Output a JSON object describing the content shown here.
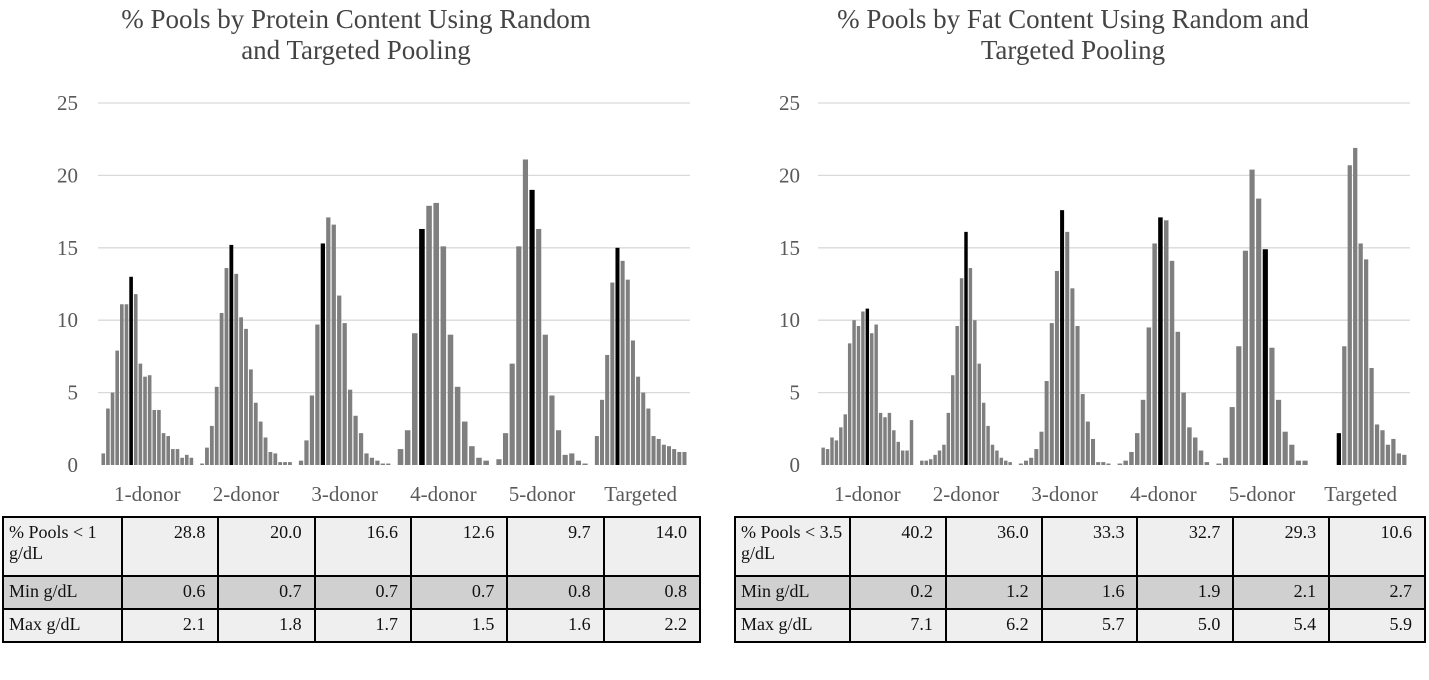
{
  "chart_data": [
    {
      "type": "bar",
      "title": "% Pools by Protein Content Using Random\nand Targeted Pooling",
      "ylim": [
        0,
        25
      ],
      "yticks": [
        0,
        5,
        10,
        15,
        20,
        25
      ],
      "grid": true,
      "groups": [
        {
          "label": "1-donor",
          "highlight_index": 6,
          "values": [
            0.8,
            3.9,
            5.0,
            7.9,
            11.1,
            11.1,
            13.0,
            11.8,
            7.0,
            6.1,
            6.2,
            3.8,
            3.8,
            2.2,
            2.0,
            1.1,
            1.1,
            0.5,
            0.7,
            0.5
          ]
        },
        {
          "label": "2-donor",
          "highlight_index": 6,
          "values": [
            0.1,
            1.2,
            2.7,
            5.4,
            10.5,
            13.6,
            15.2,
            13.2,
            10.2,
            9.4,
            6.6,
            4.3,
            3.0,
            1.9,
            0.9,
            0.8,
            0.2,
            0.2,
            0.2
          ]
        },
        {
          "label": "3-donor",
          "highlight_index": 4,
          "values": [
            0.3,
            1.7,
            4.8,
            9.7,
            15.3,
            17.1,
            16.6,
            11.7,
            9.8,
            5.2,
            3.4,
            2.2,
            0.8,
            0.5,
            0.3,
            0.1,
            0.1
          ]
        },
        {
          "label": "4-donor",
          "highlight_index": 3,
          "values": [
            1.1,
            2.4,
            9.1,
            16.3,
            17.9,
            18.1,
            15.1,
            9.0,
            5.4,
            3.0,
            1.3,
            0.5,
            0.3
          ]
        },
        {
          "label": "5-donor",
          "highlight_index": 5,
          "values": [
            0.4,
            2.2,
            7.0,
            15.1,
            21.1,
            19.0,
            16.3,
            9.0,
            4.8,
            2.4,
            0.7,
            0.8,
            0.3,
            0.1
          ]
        },
        {
          "label": "Targeted",
          "highlight_index": 4,
          "values": [
            2.0,
            4.5,
            7.6,
            12.6,
            15.0,
            14.1,
            12.8,
            8.6,
            6.1,
            5.0,
            3.9,
            2.0,
            1.8,
            1.4,
            1.3,
            1.1,
            0.9,
            0.9
          ]
        }
      ]
    },
    {
      "type": "bar",
      "title": "% Pools by Fat Content Using Random and\nTargeted Pooling",
      "ylim": [
        0,
        25
      ],
      "yticks": [
        0,
        5,
        10,
        15,
        20,
        25
      ],
      "grid": true,
      "groups": [
        {
          "label": "1-donor",
          "highlight_index": 10,
          "values": [
            1.2,
            1.1,
            1.9,
            1.7,
            2.6,
            3.5,
            8.4,
            10.0,
            9.6,
            10.6,
            10.8,
            9.1,
            9.7,
            3.6,
            3.3,
            3.6,
            2.4,
            1.6,
            1.0,
            1.0,
            3.1
          ]
        },
        {
          "label": "2-donor",
          "highlight_index": 10,
          "values": [
            0.3,
            0.3,
            0.4,
            0.7,
            1.0,
            1.4,
            3.6,
            6.2,
            9.6,
            12.9,
            16.1,
            13.6,
            10.0,
            7.0,
            4.3,
            2.7,
            1.4,
            1.0,
            0.5,
            0.3,
            0.2
          ]
        },
        {
          "label": "3-donor",
          "highlight_index": 8,
          "values": [
            0.1,
            0.3,
            0.5,
            1.1,
            2.3,
            5.8,
            9.8,
            13.4,
            17.6,
            16.1,
            12.2,
            9.6,
            4.9,
            3.0,
            1.8,
            0.2,
            0.2,
            0.1
          ]
        },
        {
          "label": "4-donor",
          "highlight_index": 7,
          "values": [
            0.1,
            0.3,
            0.9,
            2.2,
            4.5,
            9.5,
            15.3,
            17.1,
            16.9,
            14.1,
            9.2,
            5.0,
            2.6,
            1.9,
            1.0,
            0.2
          ]
        },
        {
          "label": "5-donor",
          "highlight_index": 7,
          "values": [
            0.1,
            0.5,
            4.0,
            8.2,
            14.8,
            20.4,
            18.4,
            14.9,
            8.1,
            4.5,
            2.3,
            1.4,
            0.3,
            0.3
          ]
        },
        {
          "label": "Targeted",
          "highlight_index": 4,
          "values": [
            0.0,
            0.0,
            0.0,
            0.0,
            2.2,
            8.2,
            20.7,
            21.9,
            15.3,
            14.2,
            6.7,
            2.8,
            2.4,
            1.4,
            1.8,
            0.8,
            0.7
          ]
        }
      ]
    }
  ],
  "tables": [
    {
      "columns": 6,
      "rows": [
        {
          "label": "% Pools < 1 g/dL",
          "values": [
            "28.8",
            "20.0",
            "16.6",
            "12.6",
            "9.7",
            "14.0"
          ]
        },
        {
          "label": "Min g/dL",
          "values": [
            "0.6",
            "0.7",
            "0.7",
            "0.7",
            "0.8",
            "0.8"
          ]
        },
        {
          "label": "Max g/dL",
          "values": [
            "2.1",
            "1.8",
            "1.7",
            "1.5",
            "1.6",
            "2.2"
          ]
        }
      ]
    },
    {
      "columns": 6,
      "rows": [
        {
          "label": "% Pools < 3.5 g/dL",
          "values": [
            "40.2",
            "36.0",
            "33.3",
            "32.7",
            "29.3",
            "10.6"
          ]
        },
        {
          "label": "Min g/dL",
          "values": [
            "0.2",
            "1.2",
            "1.6",
            "1.9",
            "2.1",
            "2.7"
          ]
        },
        {
          "label": "Max g/dL",
          "values": [
            "7.1",
            "6.2",
            "5.7",
            "5.0",
            "5.4",
            "5.9"
          ]
        }
      ]
    }
  ],
  "colors": {
    "bar": "#7f7f7f",
    "highlight_bar": "#000000",
    "gridline": "#d9d9d9",
    "axis_text": "#595959",
    "title_text": "#404040"
  }
}
